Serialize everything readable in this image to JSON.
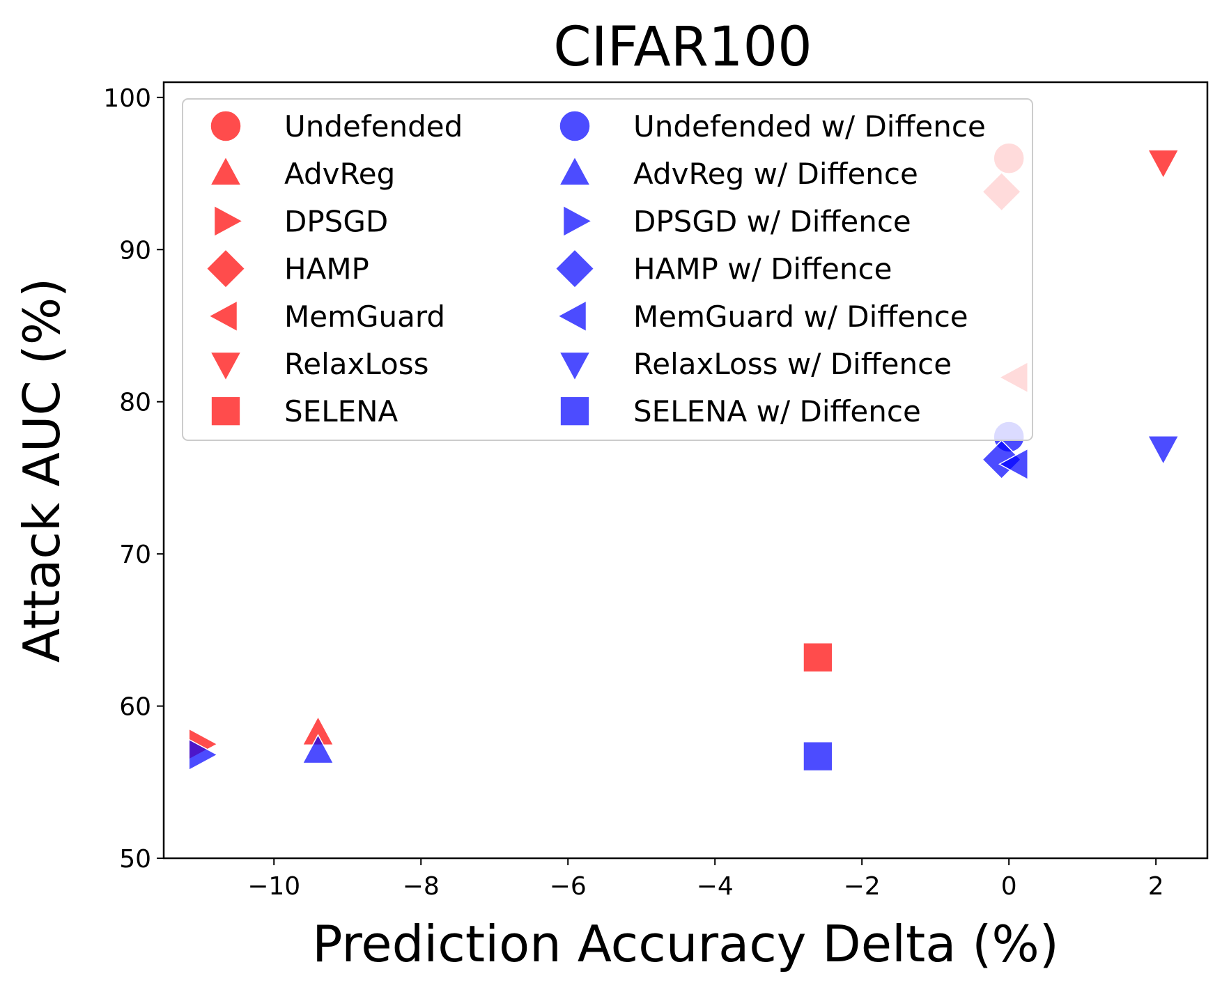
{
  "chart_data": {
    "type": "scatter",
    "title": "CIFAR100",
    "xlabel": "Prediction Accuracy Delta (%)",
    "ylabel": "Attack AUC (%)",
    "xlim": [
      -11.5,
      2.7
    ],
    "ylim": [
      50,
      101
    ],
    "xticks": [
      -10,
      -8,
      -6,
      -4,
      -2,
      0,
      2
    ],
    "yticks": [
      50,
      60,
      70,
      80,
      90,
      100
    ],
    "grid": false,
    "legend_position": "top-left",
    "legend_columns": 2,
    "colors": {
      "baseline": "#ff0000",
      "diffence": "#0000ff"
    },
    "series": [
      {
        "name": "Undefended",
        "marker": "circle",
        "group": "baseline",
        "x": 0.0,
        "y": 96.0
      },
      {
        "name": "AdvReg",
        "marker": "triangle-up",
        "group": "baseline",
        "x": -9.4,
        "y": 58.2
      },
      {
        "name": "DPSGD",
        "marker": "triangle-right",
        "group": "baseline",
        "x": -11.0,
        "y": 57.5
      },
      {
        "name": "HAMP",
        "marker": "diamond",
        "group": "baseline",
        "x": -0.1,
        "y": 93.8
      },
      {
        "name": "MemGuard",
        "marker": "triangle-left",
        "group": "baseline",
        "x": 0.1,
        "y": 81.6
      },
      {
        "name": "RelaxLoss",
        "marker": "triangle-down",
        "group": "baseline",
        "x": 2.1,
        "y": 95.8
      },
      {
        "name": "SELENA",
        "marker": "square",
        "group": "baseline",
        "x": -2.6,
        "y": 63.2
      },
      {
        "name": "Undefended w/ Diffence",
        "marker": "circle",
        "group": "diffence",
        "x": 0.0,
        "y": 77.7
      },
      {
        "name": "AdvReg w/ Diffence",
        "marker": "triangle-up",
        "group": "diffence",
        "x": -9.4,
        "y": 57.0
      },
      {
        "name": "DPSGD w/ Diffence",
        "marker": "triangle-right",
        "group": "diffence",
        "x": -11.0,
        "y": 56.8
      },
      {
        "name": "HAMP w/ Diffence",
        "marker": "diamond",
        "group": "diffence",
        "x": -0.1,
        "y": 76.2
      },
      {
        "name": "MemGuard w/ Diffence",
        "marker": "triangle-left",
        "group": "diffence",
        "x": 0.1,
        "y": 75.9
      },
      {
        "name": "RelaxLoss w/ Diffence",
        "marker": "triangle-down",
        "group": "diffence",
        "x": 2.1,
        "y": 77.0
      },
      {
        "name": "SELENA w/ Diffence",
        "marker": "square",
        "group": "diffence",
        "x": -2.6,
        "y": 56.7
      }
    ]
  }
}
